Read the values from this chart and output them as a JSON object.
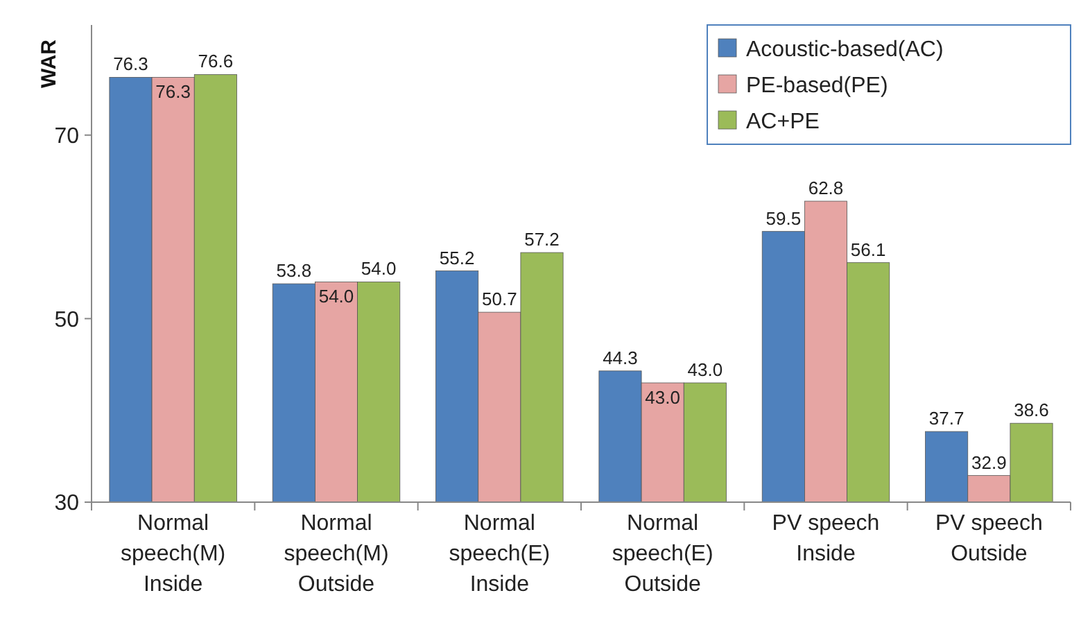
{
  "chart_data": {
    "type": "bar",
    "ylabel": "WAR",
    "categories": [
      "Normal\nspeech(M)\nInside",
      "Normal\nspeech(M)\nOutside",
      "Normal\nspeech(E)\nInside",
      "Normal\nspeech(E)\nOutside",
      "PV speech\nInside",
      "PV speech\nOutside"
    ],
    "series": [
      {
        "name": "Acoustic-based(AC)",
        "color": "#4f81bd",
        "values": [
          76.3,
          53.8,
          55.2,
          44.3,
          59.5,
          37.7
        ],
        "value_labels": [
          "76.3",
          "53.8",
          "55.2",
          "44.3",
          "59.5",
          "37.7"
        ]
      },
      {
        "name": "PE-based(PE)",
        "color": "#e6a5a3",
        "values": [
          76.3,
          54.0,
          50.7,
          43.0,
          62.8,
          32.9
        ],
        "value_labels": [
          "76.3",
          "54.0",
          "50.7",
          "43.0",
          "62.8",
          "32.9"
        ]
      },
      {
        "name": "AC+PE",
        "color": "#9bbb59",
        "values": [
          76.6,
          54.0,
          57.2,
          43.0,
          56.1,
          38.6
        ],
        "value_labels": [
          "76.6",
          "54.0",
          "57.2",
          "43.0",
          "56.1",
          "38.6"
        ]
      }
    ],
    "ylim": [
      30,
      82
    ],
    "yticks": [
      30,
      50,
      70
    ],
    "grid": false,
    "legend": "top right"
  }
}
